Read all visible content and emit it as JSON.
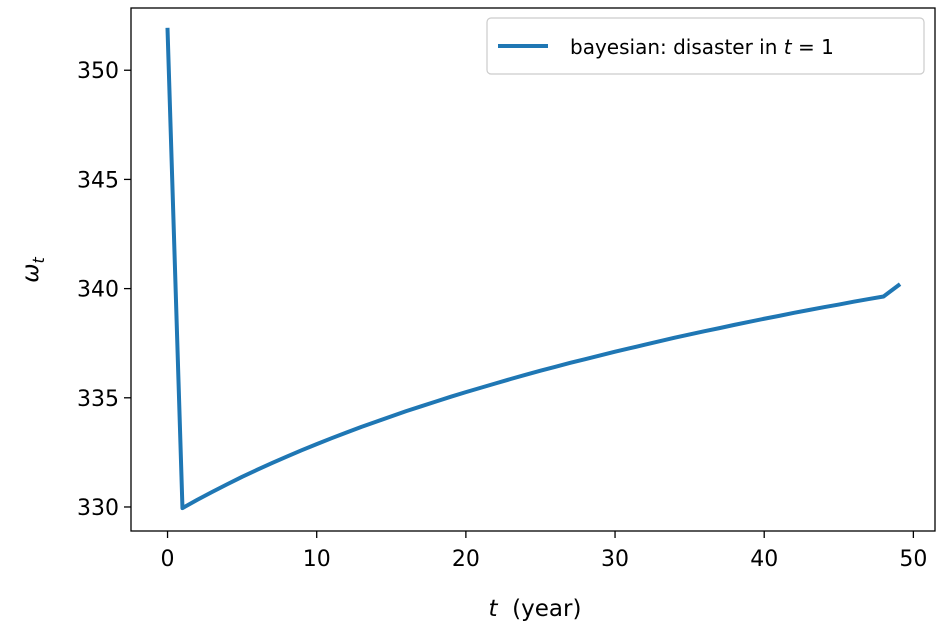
{
  "chart_data": {
    "type": "line",
    "title": "",
    "xlabel": "t  (year)",
    "ylabel": "ω_t",
    "xlim": [
      -2.45,
      51.45
    ],
    "ylim": [
      328.9,
      352.85
    ],
    "xticks": [
      0,
      10,
      20,
      30,
      40,
      50
    ],
    "yticks": [
      330,
      335,
      340,
      345,
      350
    ],
    "grid": false,
    "legend_position": "top-right",
    "series": [
      {
        "name": "bayesian: disaster in t = 1",
        "color": "#1f77b4",
        "x": [
          0,
          1,
          2,
          3,
          4,
          5,
          6,
          7,
          8,
          9,
          10,
          11,
          12,
          13,
          14,
          15,
          16,
          17,
          18,
          19,
          20,
          21,
          22,
          23,
          24,
          25,
          26,
          27,
          28,
          29,
          30,
          31,
          32,
          33,
          34,
          35,
          36,
          37,
          38,
          39,
          40,
          41,
          42,
          43,
          44,
          45,
          46,
          47,
          48,
          49
        ],
        "values": [
          351.85,
          329.95,
          330.33,
          330.69,
          331.04,
          331.38,
          331.7,
          332.01,
          332.31,
          332.6,
          332.88,
          333.15,
          333.41,
          333.67,
          333.91,
          334.15,
          334.39,
          334.61,
          334.83,
          335.05,
          335.26,
          335.46,
          335.66,
          335.86,
          336.05,
          336.24,
          336.42,
          336.6,
          336.77,
          336.94,
          337.11,
          337.27,
          337.43,
          337.59,
          337.75,
          337.9,
          338.05,
          338.19,
          338.34,
          338.48,
          338.62,
          338.75,
          338.89,
          339.02,
          339.15,
          339.27,
          339.4,
          339.52,
          339.64,
          340.15
        ]
      }
    ]
  }
}
